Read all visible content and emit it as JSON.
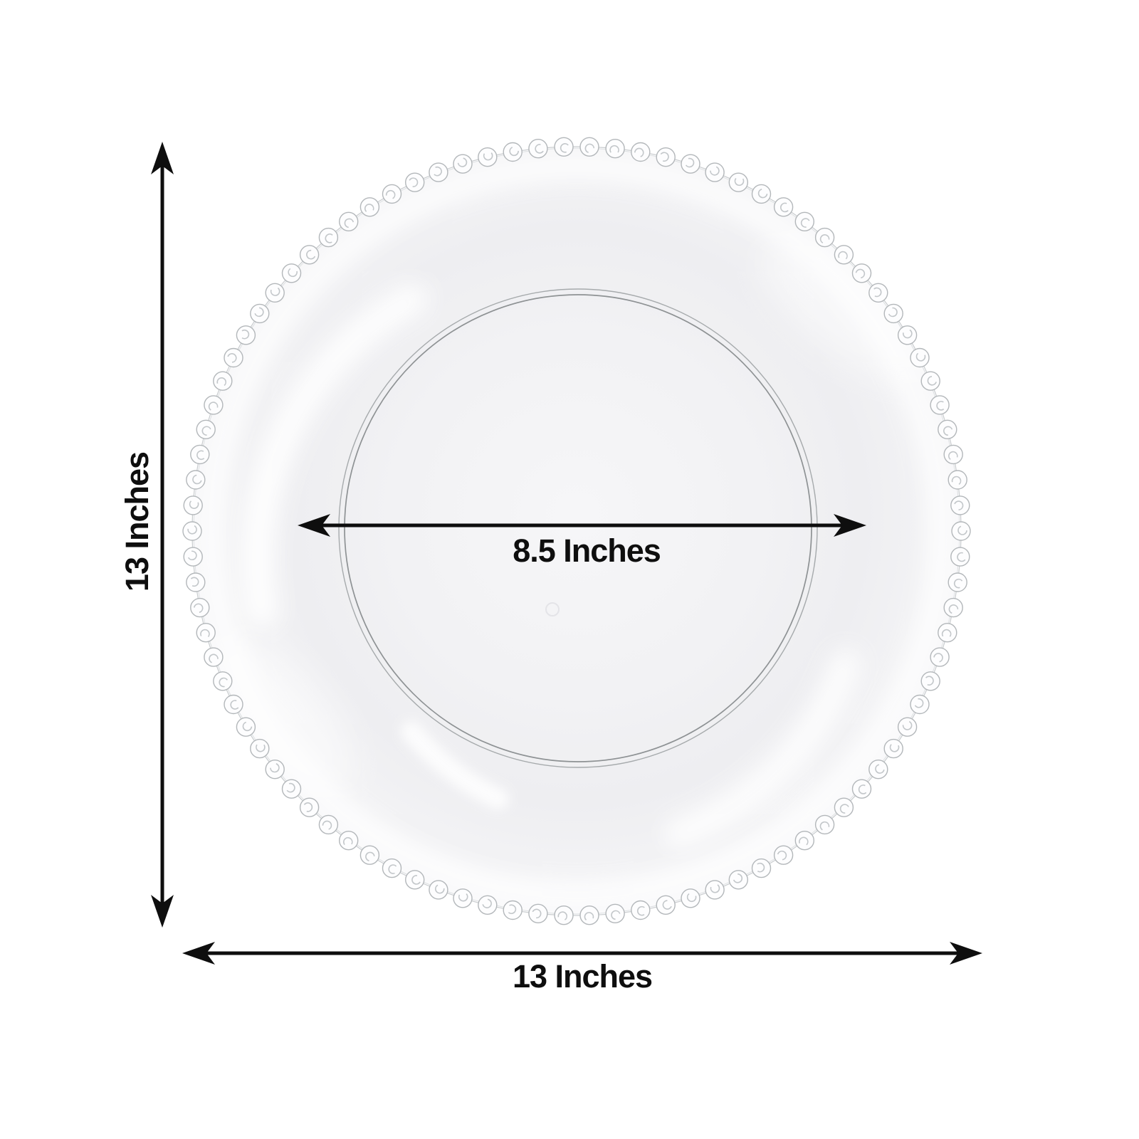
{
  "colors": {
    "background": "#ffffff",
    "arrow": "#0e0e0e",
    "text": "#0e0e0e"
  },
  "diagram": {
    "labels": {
      "outer_height": "13 Inches",
      "outer_width": "13 Inches",
      "inner_diameter": "8.5 Inches"
    }
  }
}
